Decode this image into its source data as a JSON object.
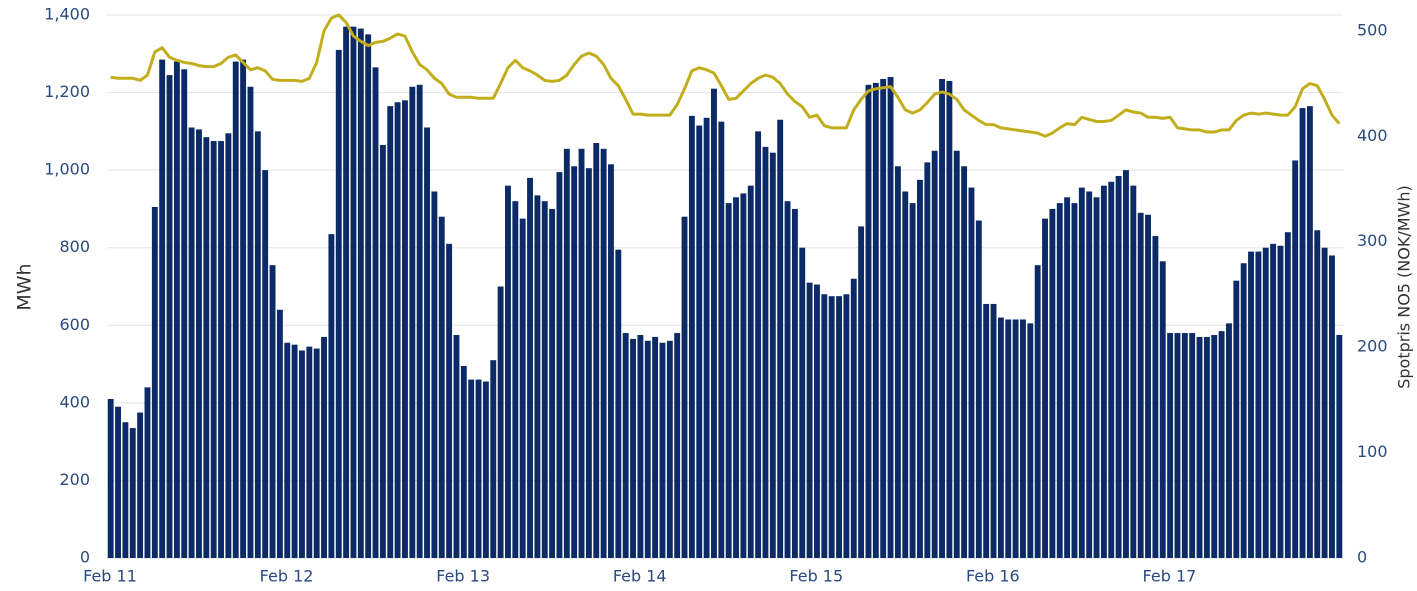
{
  "chart_data": {
    "type": "bar",
    "y_label": "MWh",
    "y2_label": "Spotpris NO5 (NOK/MWh)",
    "categories": [
      "Feb 11",
      null,
      null,
      null,
      null,
      null,
      null,
      null,
      null,
      null,
      null,
      null,
      null,
      null,
      null,
      null,
      null,
      null,
      null,
      null,
      null,
      null,
      null,
      null,
      "Feb 12",
      null,
      null,
      null,
      null,
      null,
      null,
      null,
      null,
      null,
      null,
      null,
      null,
      null,
      null,
      null,
      null,
      null,
      null,
      null,
      null,
      null,
      null,
      null,
      "Feb 13",
      null,
      null,
      null,
      null,
      null,
      null,
      null,
      null,
      null,
      null,
      null,
      null,
      null,
      null,
      null,
      null,
      null,
      null,
      null,
      null,
      null,
      null,
      null,
      "Feb 14",
      null,
      null,
      null,
      null,
      null,
      null,
      null,
      null,
      null,
      null,
      null,
      null,
      null,
      null,
      null,
      null,
      null,
      null,
      null,
      null,
      null,
      null,
      null,
      "Feb 15",
      null,
      null,
      null,
      null,
      null,
      null,
      null,
      null,
      null,
      null,
      null,
      null,
      null,
      null,
      null,
      null,
      null,
      null,
      null,
      null,
      null,
      null,
      null,
      "Feb 16",
      null,
      null,
      null,
      null,
      null,
      null,
      null,
      null,
      null,
      null,
      null,
      null,
      null,
      null,
      null,
      null,
      null,
      null,
      null,
      null,
      null,
      null,
      null,
      "Feb 17",
      null,
      null,
      null,
      null,
      null,
      null,
      null,
      null,
      null,
      null,
      null,
      null,
      null,
      null,
      null,
      null,
      null,
      null,
      null,
      null,
      null,
      null,
      null
    ],
    "series": [
      {
        "type": "bar",
        "color": "#0b2a66",
        "values": [
          410,
          390,
          350,
          335,
          375,
          440,
          905,
          1285,
          1245,
          1280,
          1260,
          1110,
          1105,
          1085,
          1075,
          1075,
          1095,
          1280,
          1285,
          1215,
          1100,
          1000,
          755,
          640,
          555,
          550,
          535,
          545,
          540,
          570,
          835,
          1310,
          1370,
          1370,
          1365,
          1350,
          1265,
          1065,
          1165,
          1175,
          1180,
          1215,
          1220,
          1110,
          945,
          880,
          810,
          575,
          495,
          460,
          460,
          455,
          510,
          700,
          960,
          920,
          875,
          980,
          935,
          920,
          900,
          995,
          1055,
          1010,
          1055,
          1005,
          1070,
          1055,
          1015,
          795,
          580,
          565,
          575,
          560,
          570,
          555,
          560,
          580,
          880,
          1140,
          1115,
          1135,
          1210,
          1125,
          915,
          930,
          940,
          960,
          1100,
          1060,
          1045,
          1130,
          920,
          900,
          800,
          710,
          705,
          680,
          675,
          675,
          680,
          720,
          855,
          1220,
          1225,
          1235,
          1240,
          1010,
          945,
          915,
          975,
          1020,
          1050,
          1235,
          1230,
          1050,
          1010,
          955,
          870,
          655,
          655,
          620,
          615,
          615,
          615,
          605,
          755,
          875,
          900,
          915,
          930,
          915,
          955,
          945,
          930,
          960,
          970,
          985,
          1000,
          960,
          890,
          885,
          830,
          765,
          580,
          580,
          580,
          580,
          570,
          570,
          575,
          585,
          605,
          715,
          760,
          790,
          790,
          800,
          810,
          805,
          840,
          1025,
          1160,
          1165,
          845,
          800,
          780,
          575
        ]
      },
      {
        "type": "line",
        "axis": "y2",
        "color": "#c2ae1c",
        "values": [
          456,
          455,
          455,
          455,
          453,
          458,
          480,
          484,
          475,
          472,
          470,
          469,
          467,
          466,
          466,
          469,
          475,
          477,
          470,
          463,
          465,
          462,
          454,
          453,
          453,
          453,
          452,
          455,
          470,
          500,
          512,
          515,
          508,
          495,
          490,
          486,
          489,
          490,
          493,
          497,
          495,
          480,
          468,
          463,
          455,
          450,
          440,
          437,
          437,
          437,
          436,
          436,
          436,
          450,
          465,
          472,
          465,
          462,
          458,
          453,
          452,
          453,
          458,
          468,
          476,
          479,
          476,
          468,
          455,
          448,
          435,
          421,
          421,
          420,
          420,
          420,
          420,
          430,
          445,
          462,
          465,
          463,
          460,
          448,
          435,
          436,
          443,
          450,
          455,
          458,
          456,
          450,
          440,
          433,
          428,
          418,
          420,
          410,
          408,
          408,
          408,
          425,
          435,
          443,
          445,
          446,
          447,
          437,
          425,
          422,
          425,
          432,
          440,
          442,
          440,
          435,
          425,
          420,
          415,
          411,
          411,
          408,
          407,
          406,
          405,
          404,
          403,
          400,
          403,
          408,
          412,
          411,
          418,
          416,
          414,
          414,
          415,
          420,
          425,
          423,
          422,
          418,
          418,
          417,
          418,
          408,
          407,
          406,
          406,
          404,
          404,
          406,
          406,
          415,
          420,
          422,
          421,
          422,
          421,
          420,
          420,
          428,
          445,
          450,
          448,
          435,
          420,
          412
        ]
      }
    ],
    "ylim": [
      0,
      1400
    ],
    "yticks": [
      0,
      200,
      400,
      600,
      800,
      {
        "value": 1000,
        "label": "1,000"
      },
      {
        "value": 1200,
        "label": "1,200"
      },
      {
        "value": 1400,
        "label": "1,400"
      }
    ],
    "y2lim": [
      0,
      515
    ],
    "y2ticks": [
      0,
      100,
      200,
      300,
      400,
      500
    ],
    "grid": true
  }
}
